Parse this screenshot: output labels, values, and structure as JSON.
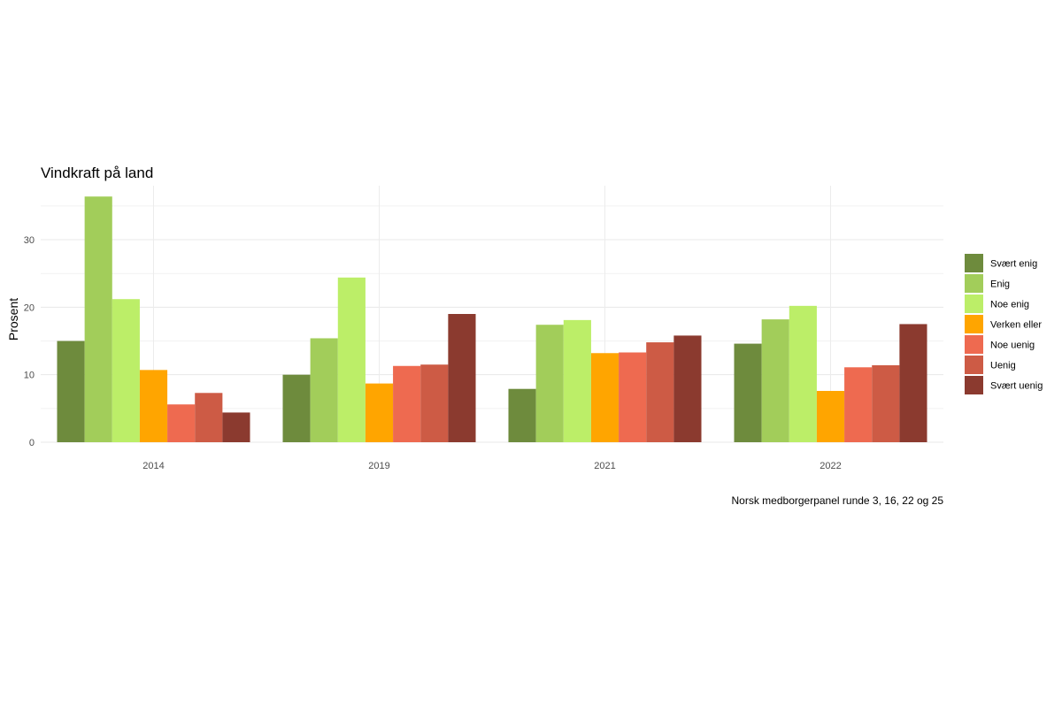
{
  "chart_data": {
    "type": "bar",
    "title": "Vindkraft på land",
    "xlabel": "",
    "ylabel": "Prosent",
    "caption": "Norsk medborgerpanel runde 3, 16, 22 og 25",
    "categories": [
      "2014",
      "2019",
      "2021",
      "2022"
    ],
    "ylim": [
      0,
      38
    ],
    "y_ticks": [
      0,
      10,
      20,
      30
    ],
    "grid": true,
    "legend_position": "right",
    "series": [
      {
        "name": "Svært enig",
        "color": "#6E8B3D",
        "values": [
          15.0,
          10.0,
          7.9,
          14.6
        ]
      },
      {
        "name": "Enig",
        "color": "#A2CD5A",
        "values": [
          36.4,
          15.4,
          17.4,
          18.2
        ]
      },
      {
        "name": "Noe enig",
        "color": "#BCEE68",
        "values": [
          21.2,
          24.4,
          18.1,
          20.2
        ]
      },
      {
        "name": "Verken eller",
        "color": "#FFA500",
        "values": [
          10.7,
          8.7,
          13.2,
          7.6
        ]
      },
      {
        "name": "Noe uenig",
        "color": "#EE6A50",
        "values": [
          5.6,
          11.3,
          13.3,
          11.1
        ]
      },
      {
        "name": "Uenig",
        "color": "#CD5B45",
        "values": [
          7.3,
          11.5,
          14.8,
          11.4
        ]
      },
      {
        "name": "Svært uenig",
        "color": "#8B3A2F",
        "values": [
          4.4,
          19.0,
          15.8,
          17.5
        ]
      }
    ]
  }
}
